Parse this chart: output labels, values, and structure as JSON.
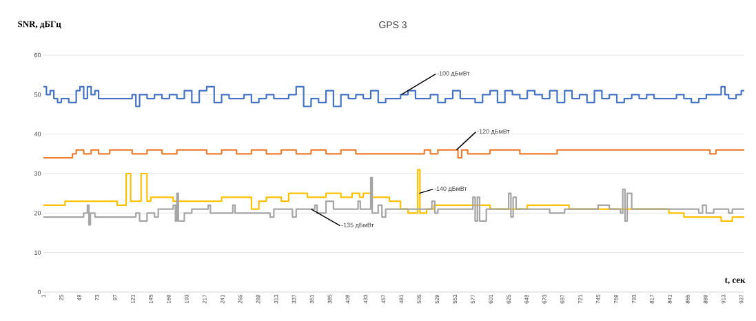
{
  "chart_data": {
    "type": "step",
    "title": "GPS 3",
    "ylabel": "SNR, дБГц",
    "xlabel": "t, сек",
    "xlim": [
      1,
      941
    ],
    "xticks": [
      1,
      25,
      49,
      73,
      97,
      121,
      145,
      169,
      193,
      217,
      241,
      265,
      289,
      313,
      337,
      361,
      385,
      409,
      433,
      457,
      481,
      505,
      529,
      553,
      577,
      601,
      625,
      649,
      673,
      697,
      721,
      745,
      769,
      793,
      817,
      841,
      865,
      889,
      913,
      937
    ],
    "ylim": [
      0,
      60
    ],
    "yticks": [
      0,
      10,
      20,
      30,
      40,
      50,
      60
    ],
    "grid": "y",
    "marker": "none",
    "line_style": "solid",
    "series": [
      {
        "color": "#4472c4",
        "x": [
          1,
          5,
          10,
          15,
          20,
          25,
          30,
          35,
          45,
          50,
          55,
          60,
          65,
          70,
          75,
          85,
          95,
          105,
          115,
          120,
          125,
          130,
          140,
          150,
          160,
          170,
          180,
          190,
          200,
          210,
          220,
          230,
          240,
          250,
          260,
          270,
          280,
          290,
          300,
          310,
          320,
          330,
          340,
          350,
          360,
          370,
          380,
          390,
          400,
          410,
          420,
          430,
          440,
          450,
          460,
          470,
          480,
          490,
          500,
          510,
          520,
          530,
          540,
          550,
          560,
          570,
          580,
          590,
          600,
          610,
          620,
          630,
          640,
          650,
          660,
          670,
          680,
          690,
          700,
          710,
          720,
          730,
          740,
          750,
          760,
          770,
          780,
          790,
          800,
          810,
          820,
          830,
          840,
          850,
          860,
          870,
          880,
          890,
          900,
          910,
          915,
          920,
          930,
          937,
          941
        ],
        "values": [
          52,
          50,
          51,
          49,
          48,
          49,
          49,
          48,
          51,
          52,
          49,
          52,
          50,
          51,
          49,
          49,
          49,
          49,
          49,
          50,
          47,
          50,
          49,
          50,
          49,
          50,
          49,
          51,
          48,
          51,
          52,
          48,
          50,
          49,
          49,
          50,
          48,
          49,
          50,
          49,
          49,
          50,
          52,
          47,
          49,
          48,
          51,
          47,
          50,
          49,
          50,
          49,
          51,
          48,
          49,
          49,
          50,
          51,
          49,
          49,
          50,
          48,
          49,
          51,
          49,
          49,
          48,
          50,
          51,
          48,
          51,
          50,
          49,
          51,
          50,
          49,
          51,
          48,
          51,
          49,
          50,
          48,
          51,
          49,
          50,
          48,
          49,
          50,
          49,
          50,
          49,
          49,
          49,
          50,
          49,
          48,
          49,
          50,
          50,
          52,
          50,
          49,
          50,
          51,
          51
        ]
      },
      {
        "color": "#ed7d31",
        "x": [
          1,
          40,
          45,
          55,
          65,
          75,
          90,
          100,
          120,
          140,
          160,
          180,
          200,
          220,
          240,
          260,
          280,
          300,
          320,
          340,
          360,
          380,
          400,
          420,
          442,
          512,
          520,
          530,
          550,
          557,
          562,
          570,
          590,
          600,
          640,
          680,
          690,
          700,
          895,
          903,
          941
        ],
        "values": [
          34,
          35,
          36,
          35,
          36,
          35,
          36,
          36,
          35,
          36,
          35,
          36,
          36,
          35,
          36,
          35,
          36,
          35,
          36,
          35,
          36,
          35,
          36,
          35,
          35,
          36,
          35,
          36,
          36,
          34,
          36,
          35,
          35,
          36,
          35,
          35,
          36,
          36,
          35,
          36,
          36
        ]
      },
      {
        "color": "#ffc000",
        "x": [
          1,
          30,
          100,
          112,
          118,
          132,
          140,
          145,
          175,
          200,
          240,
          280,
          290,
          300,
          320,
          330,
          355,
          380,
          400,
          415,
          425,
          430,
          440,
          465,
          480,
          490,
          503,
          506,
          515,
          525,
          600,
          650,
          706,
          840,
          860,
          910,
          925,
          941
        ],
        "values": [
          22,
          23,
          22,
          30,
          23,
          30,
          23,
          24,
          23,
          23,
          24,
          21,
          23,
          24,
          23,
          25,
          24,
          25,
          24,
          25,
          24,
          25,
          24,
          23,
          21,
          20,
          31,
          20,
          21,
          22,
          21,
          22,
          21,
          20,
          19,
          18,
          19,
          19
        ]
      },
      {
        "color": "#a5a5a5",
        "x": [
          1,
          55,
          60,
          62,
          64,
          70,
          125,
          130,
          140,
          150,
          155,
          175,
          178,
          180,
          182,
          190,
          200,
          222,
          225,
          230,
          255,
          258,
          260,
          305,
          310,
          335,
          340,
          365,
          368,
          370,
          380,
          390,
          400,
          423,
          426,
          430,
          440,
          442,
          450,
          455,
          460,
          522,
          526,
          530,
          577,
          580,
          583,
          586,
          595,
          625,
          628,
          631,
          635,
          680,
          700,
          745,
          760,
          775,
          778,
          781,
          784,
          790,
          840,
          880,
          885,
          890,
          900,
          915,
          920,
          925,
          941
        ],
        "values": [
          19,
          20,
          22,
          17,
          20,
          19,
          20,
          18,
          20,
          19,
          21,
          22,
          18,
          25,
          18,
          20,
          21,
          22,
          20,
          20,
          22,
          20,
          20,
          19,
          21,
          19,
          21,
          22,
          20,
          20,
          23,
          21,
          21,
          23,
          21,
          21,
          29,
          20,
          22,
          19,
          21,
          23,
          20,
          21,
          24,
          18,
          24,
          18,
          21,
          25,
          19,
          24,
          21,
          20,
          21,
          22,
          21,
          20,
          26,
          18,
          25,
          21,
          21,
          20,
          22,
          20,
          21,
          21,
          20,
          21,
          21
        ]
      }
    ],
    "annotations": [
      {
        "text": "-100 дБмВт",
        "x": 481,
        "y": 50
      },
      {
        "text": "-120 дБмВт",
        "x": 555,
        "y": 36
      },
      {
        "text": "-140 дБмВт",
        "x": 505,
        "y": 25
      },
      {
        "text": "-135 дБмВт",
        "x": 360,
        "y": 21
      }
    ]
  }
}
